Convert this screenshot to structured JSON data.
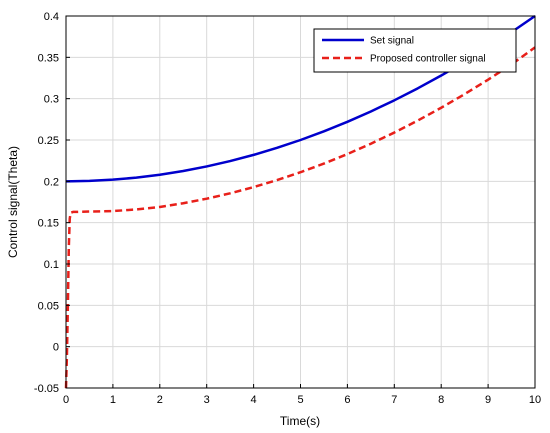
{
  "chart_data": {
    "type": "line",
    "title": "",
    "xlabel": "Time(s)",
    "ylabel": "Control signal(Theta)",
    "xlim": [
      0,
      10
    ],
    "ylim": [
      -0.05,
      0.4
    ],
    "xticks": [
      0,
      1,
      2,
      3,
      4,
      5,
      6,
      7,
      8,
      9,
      10
    ],
    "yticks": [
      -0.05,
      0,
      0.05,
      0.1,
      0.15,
      0.2,
      0.25,
      0.3,
      0.35,
      0.4
    ],
    "ytick_labels": [
      "-0.05",
      "0",
      "0.05",
      "0.1",
      "0.15",
      "0.2",
      "0.25",
      "0.3",
      "0.35",
      "0.4"
    ],
    "xtick_labels": [
      "0",
      "1",
      "2",
      "3",
      "4",
      "5",
      "6",
      "7",
      "8",
      "9",
      "10"
    ],
    "grid": true,
    "legend_position": "top-right",
    "series": [
      {
        "name": "Set signal",
        "color": "#0000cc",
        "style": "solid",
        "x": [
          0,
          0.5,
          1,
          1.5,
          2,
          2.5,
          3,
          3.5,
          4,
          4.5,
          5,
          5.5,
          6,
          6.5,
          7,
          7.5,
          8,
          8.5,
          9,
          9.5,
          10
        ],
        "y": [
          0.2,
          0.2005,
          0.202,
          0.2045,
          0.208,
          0.2125,
          0.218,
          0.2245,
          0.232,
          0.2405,
          0.25,
          0.2605,
          0.272,
          0.2845,
          0.298,
          0.3125,
          0.328,
          0.3445,
          0.362,
          0.3805,
          0.4
        ]
      },
      {
        "name": "Proposed controller signal",
        "color": "#e8201a",
        "style": "dashed",
        "x": [
          0,
          0.02,
          0.04,
          0.06,
          0.08,
          0.1,
          0.15,
          0.2,
          0.5,
          1,
          1.5,
          2,
          2.5,
          3,
          3.5,
          4,
          4.5,
          5,
          5.5,
          6,
          6.5,
          7,
          7.5,
          8,
          8.5,
          9,
          9.5,
          10
        ],
        "y": [
          -0.05,
          -0.01,
          0.05,
          0.12,
          0.155,
          0.162,
          0.163,
          0.163,
          0.1635,
          0.164,
          0.166,
          0.169,
          0.1735,
          0.179,
          0.1855,
          0.193,
          0.2015,
          0.211,
          0.2215,
          0.233,
          0.2455,
          0.259,
          0.2735,
          0.289,
          0.3055,
          0.323,
          0.3415,
          0.362
        ]
      }
    ]
  }
}
